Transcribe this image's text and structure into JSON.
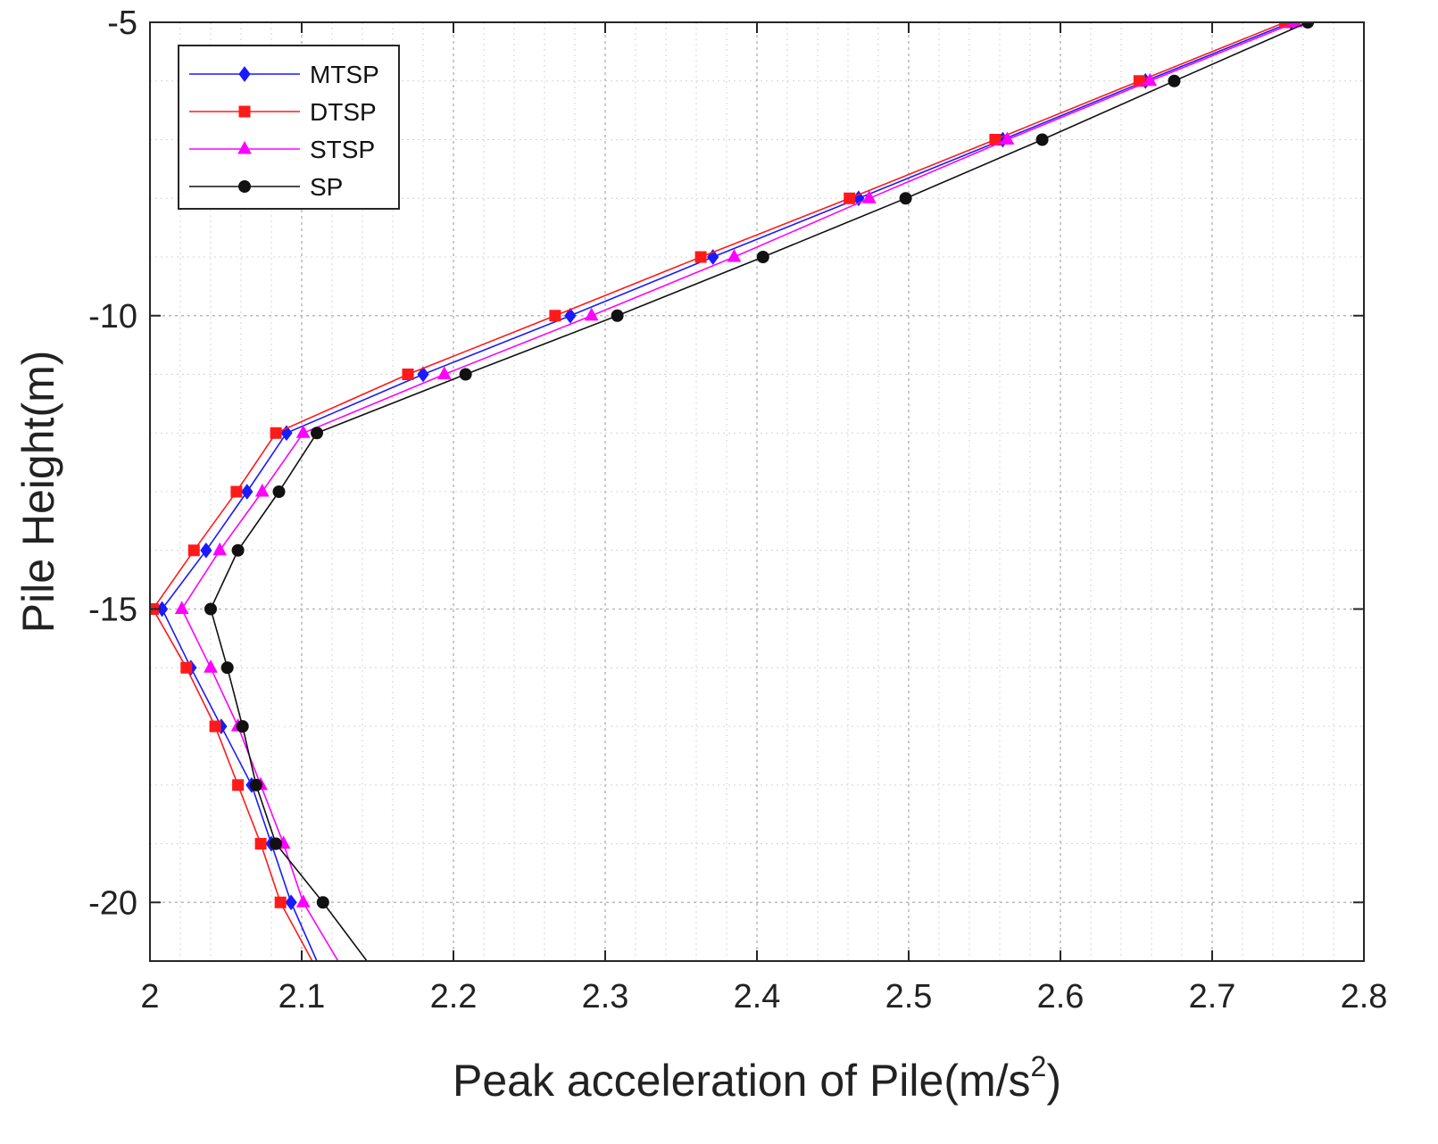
{
  "chart_data": {
    "type": "line",
    "title": "",
    "xlabel": "Peak acceleration of Pile(m/s",
    "xlabel_sup": "2",
    "xlabel_tail": ")",
    "ylabel": "Pile Height(m)",
    "xlim": [
      2,
      2.8
    ],
    "ylim": [
      -21,
      -5
    ],
    "x_ticks": [
      2,
      2.1,
      2.2,
      2.3,
      2.4,
      2.5,
      2.6,
      2.7,
      2.8
    ],
    "x_tick_labels": [
      "2",
      "2.1",
      "2.2",
      "2.3",
      "2.4",
      "2.5",
      "2.6",
      "2.7",
      "2.8"
    ],
    "y_ticks": [
      -5,
      -10,
      -15,
      -20
    ],
    "y_tick_labels": [
      "-5",
      "-10",
      "-15",
      "-20"
    ],
    "grid": true,
    "legend_position": "top-left",
    "y": [
      -5,
      -6,
      -7,
      -8,
      -9,
      -10,
      -11,
      -12,
      -13,
      -14,
      -15,
      -16,
      -17,
      -18,
      -19,
      -20,
      -21
    ],
    "series": [
      {
        "name": "MTSP",
        "color": "#1a1aff",
        "marker": "diamond",
        "x": [
          2.752,
          2.656,
          2.562,
          2.467,
          2.371,
          2.277,
          2.18,
          2.09,
          2.064,
          2.037,
          2.008,
          2.027,
          2.047,
          2.067,
          2.08,
          2.093,
          2.11
        ]
      },
      {
        "name": "DTSP",
        "color": "#ff1a1a",
        "marker": "square",
        "x": [
          2.748,
          2.652,
          2.557,
          2.461,
          2.363,
          2.267,
          2.17,
          2.083,
          2.057,
          2.029,
          2.002,
          2.024,
          2.043,
          2.058,
          2.073,
          2.086,
          2.107
        ]
      },
      {
        "name": "STSP",
        "color": "#ff00ff",
        "marker": "triangle",
        "x": [
          2.755,
          2.659,
          2.565,
          2.474,
          2.385,
          2.291,
          2.194,
          2.101,
          2.074,
          2.046,
          2.021,
          2.04,
          2.058,
          2.073,
          2.088,
          2.101,
          2.124
        ]
      },
      {
        "name": "SP",
        "color": "#111111",
        "marker": "circle",
        "x": [
          2.763,
          2.675,
          2.588,
          2.498,
          2.404,
          2.308,
          2.208,
          2.11,
          2.085,
          2.058,
          2.04,
          2.051,
          2.061,
          2.07,
          2.083,
          2.114,
          2.143
        ]
      }
    ]
  }
}
